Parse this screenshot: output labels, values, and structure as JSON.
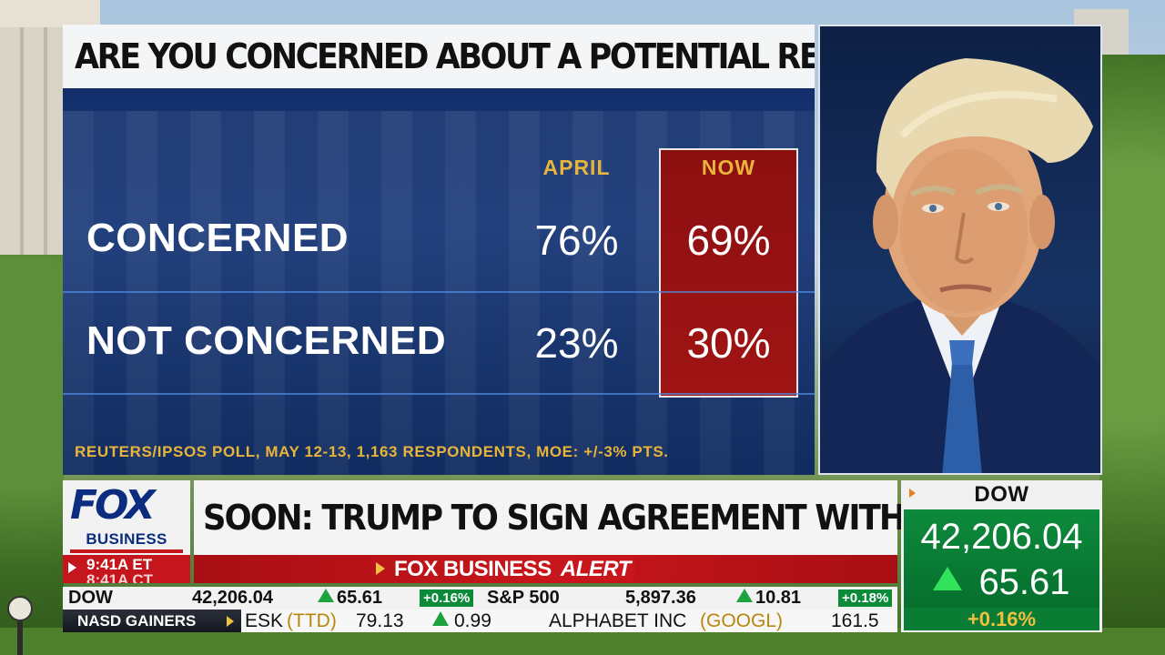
{
  "poll": {
    "title": "ARE YOU CONCERNED ABOUT A POTENTIAL RECESSION?",
    "columns": {
      "april": "APRIL",
      "now": "NOW"
    },
    "rows": [
      {
        "label": "CONCERNED",
        "april": "76%",
        "now": "69%"
      },
      {
        "label": "NOT CONCERNED",
        "april": "23%",
        "now": "30%"
      }
    ],
    "source": "REUTERS/IPSOS POLL, MAY 12-13, 1,163 RESPONDENTS, MOE: +/-3% PTS."
  },
  "branding": {
    "logo_fox": "FOX",
    "logo_business": "BUSINESS",
    "clock": "9:41A ET",
    "clock_next": "8:41A CT"
  },
  "headline": "SOON: TRUMP TO SIGN AGREEMENT WITH QATAR",
  "alert": {
    "brand": "FOX BUSINESS",
    "word": "ALERT"
  },
  "dow_box": {
    "title": "DOW",
    "value": "42,206.04",
    "change": "65.61",
    "pct": "+0.16",
    "pct_sign": "%"
  },
  "ticker": {
    "indices": [
      {
        "name": "DOW",
        "value": "42,206.04",
        "change": "65.61",
        "pct": "+0.16%"
      },
      {
        "name": "S&P 500",
        "value": "5,897.36",
        "change": "10.81",
        "pct": "+0.18%"
      }
    ],
    "gainers_label": "NASD GAINERS",
    "gainers": [
      {
        "name": "ESK",
        "symbol": "(TTD)",
        "price": "79.13",
        "change": "0.99"
      },
      {
        "name": "ALPHABET INC",
        "symbol": "(GOOGL)",
        "price": "161.5",
        "change": ""
      }
    ]
  },
  "colors": {
    "poll_bg": "#1a3a7c",
    "now_col": "#a01414",
    "header_gold": "#e9b43a",
    "dow_green": "#0d8a3c",
    "up_green": "#1ca33e",
    "alert_red": "#c8161c"
  },
  "icons": {
    "up": "up-triangle-icon",
    "arrow": "play-arrow-icon"
  }
}
